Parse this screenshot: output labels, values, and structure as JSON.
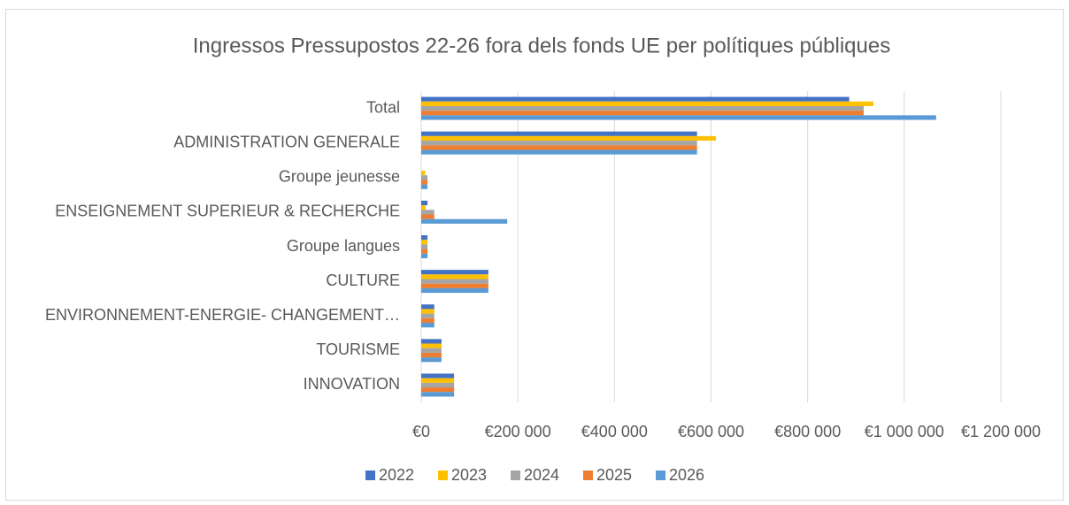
{
  "chart_data": {
    "type": "hbar",
    "title": "Ingressos Pressupostos 22-26 fora dels fonds UE per polítiques públiques",
    "categories": [
      "Total",
      "ADMINISTRATION GENERALE",
      "Groupe jeunesse",
      "ENSEIGNEMENT SUPERIEUR & RECHERCHE",
      "Groupe langues",
      "CULTURE",
      "ENVIRONNEMENT-ENERGIE- CHANGEMENT…",
      "TOURISME",
      "INNOVATION"
    ],
    "series": [
      {
        "name": "2022",
        "color": "#4472c4",
        "values": [
          886000,
          571000,
          0,
          13000,
          13000,
          139000,
          27000,
          42000,
          68000
        ]
      },
      {
        "name": "2023",
        "color": "#ffc000",
        "values": [
          936000,
          610000,
          8000,
          9000,
          13000,
          139000,
          27000,
          42000,
          68000
        ]
      },
      {
        "name": "2024",
        "color": "#a5a5a5",
        "values": [
          916000,
          571000,
          13000,
          27000,
          13000,
          139000,
          27000,
          42000,
          68000
        ]
      },
      {
        "name": "2025",
        "color": "#ed7d31",
        "values": [
          916000,
          571000,
          13000,
          27000,
          13000,
          139000,
          27000,
          42000,
          68000
        ]
      },
      {
        "name": "2026",
        "color": "#5b9bd5",
        "values": [
          1066000,
          571000,
          13000,
          178000,
          13000,
          139000,
          27000,
          42000,
          68000
        ]
      }
    ],
    "xlim": [
      0,
      1200000
    ],
    "xticks": [
      {
        "value": 0,
        "label": "€0"
      },
      {
        "value": 200000,
        "label": "€200 000"
      },
      {
        "value": 400000,
        "label": "€400 000"
      },
      {
        "value": 600000,
        "label": "€600 000"
      },
      {
        "value": 800000,
        "label": "€800 000"
      },
      {
        "value": 1000000,
        "label": "€1 000 000"
      },
      {
        "value": 1200000,
        "label": "€1 200 000"
      }
    ],
    "grid": true,
    "legend": "bottom"
  }
}
